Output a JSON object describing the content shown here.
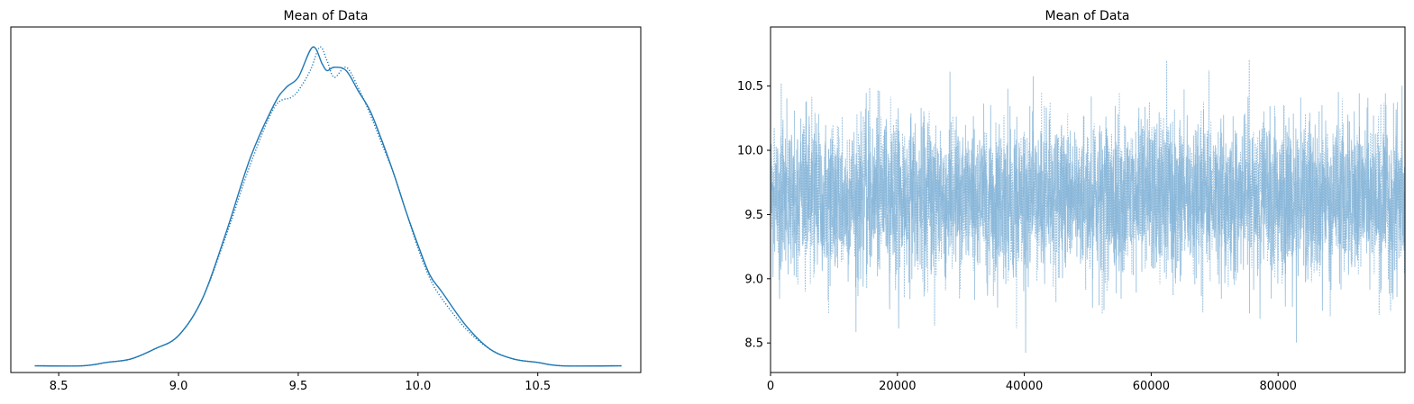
{
  "chart_data": [
    {
      "type": "line",
      "title": "Mean of Data",
      "xlabel": "",
      "ylabel": "",
      "xlim": [
        8.3,
        10.93
      ],
      "ylim": [
        -0.02,
        1.01
      ],
      "x_ticks": [
        8.5,
        9.0,
        9.5,
        10.0,
        10.5
      ],
      "x_tick_labels": [
        "8.5",
        "9.0",
        "9.5",
        "10.0",
        "10.5"
      ],
      "y_ticks_visible": false,
      "color": "#1f77b4",
      "series": [
        {
          "line_style": "solid",
          "x": [
            8.4,
            8.6,
            8.7,
            8.8,
            8.9,
            9.0,
            9.1,
            9.2,
            9.3,
            9.4,
            9.45,
            9.5,
            9.56,
            9.6,
            9.62,
            9.65,
            9.7,
            9.75,
            9.8,
            9.85,
            9.9,
            9.95,
            10.0,
            10.05,
            10.1,
            10.2,
            10.3,
            10.4,
            10.5,
            10.6,
            10.85
          ],
          "y": [
            0.0,
            0.0,
            0.01,
            0.02,
            0.05,
            0.09,
            0.2,
            0.4,
            0.62,
            0.78,
            0.83,
            0.86,
            0.95,
            0.9,
            0.88,
            0.89,
            0.88,
            0.82,
            0.76,
            0.67,
            0.57,
            0.46,
            0.36,
            0.27,
            0.22,
            0.12,
            0.05,
            0.02,
            0.01,
            0.0,
            0.0
          ]
        },
        {
          "line_style": "dotted",
          "x": [
            8.4,
            8.6,
            8.7,
            8.8,
            8.9,
            9.0,
            9.1,
            9.2,
            9.3,
            9.4,
            9.47,
            9.5,
            9.55,
            9.59,
            9.62,
            9.65,
            9.7,
            9.75,
            9.8,
            9.85,
            9.9,
            9.95,
            10.0,
            10.05,
            10.1,
            10.2,
            10.3,
            10.4,
            10.5,
            10.6,
            10.85
          ],
          "y": [
            0.0,
            0.0,
            0.01,
            0.02,
            0.05,
            0.09,
            0.2,
            0.39,
            0.6,
            0.77,
            0.8,
            0.82,
            0.88,
            0.95,
            0.91,
            0.86,
            0.89,
            0.83,
            0.75,
            0.66,
            0.57,
            0.46,
            0.35,
            0.26,
            0.2,
            0.11,
            0.05,
            0.02,
            0.01,
            0.0,
            0.0
          ]
        }
      ]
    },
    {
      "type": "line",
      "title": "Mean of Data",
      "xlabel": "",
      "ylabel": "",
      "xlim": [
        0,
        100000
      ],
      "ylim": [
        8.27,
        10.96
      ],
      "x_ticks": [
        0,
        20000,
        40000,
        60000,
        80000
      ],
      "x_tick_labels": [
        "0",
        "20000",
        "40000",
        "60000",
        "80000"
      ],
      "y_ticks": [
        8.5,
        9.0,
        9.5,
        10.0,
        10.5
      ],
      "y_tick_labels": [
        "8.5",
        "9.0",
        "9.5",
        "10.0",
        "10.5"
      ],
      "color": "#7fb0d5",
      "trace": {
        "n_samples": 100000,
        "mean": 9.63,
        "sd": 0.3,
        "min": 8.39,
        "max": 10.86,
        "n_chains": 2,
        "chain_line_styles": [
          "solid",
          "dotted"
        ]
      }
    }
  ]
}
